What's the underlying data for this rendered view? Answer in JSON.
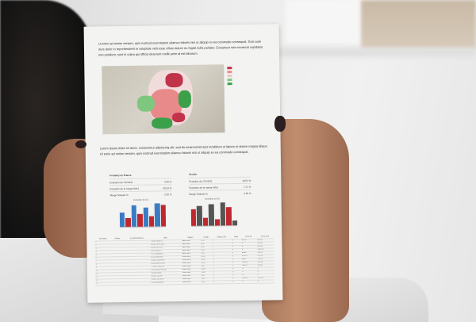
{
  "document": {
    "para1": "Ut enim ad minim veniam, quis nostrud exercitation ullamco laboris nisi ut aliquip ex ea commodo consequat. Duis aute irure dolor in reprehenderit in voluptate velit esse cillum dolore eu fugiat nulla pariatur. Excepteur sint occaecat cupidatat non proident, sunt in culpa qui officia deserunt mollit anim id est laborum.",
    "para2": "Lorem ipsum dolor sit amet, consectetur adipiscing elit, sed do eiusmod tempor incididunt ut labore et dolore magna aliqua. Ut enim ad minim veniam, quis nostrud exercitation ullamco laboris nisi ut aliquip ex ea commodo consequat.",
    "map_legend": {
      "colors": [
        "#c0334a",
        "#e88a8a",
        "#f2c2c2",
        "#7fc77f",
        "#3aa04a"
      ]
    },
    "kpi_left": {
      "title": "Fonteley en France",
      "rows": [
        [
          "Evolution du CA N/N1",
          "-4.48 %"
        ],
        [
          "Evolution de la marge N/N1",
          "-40.54 %"
        ],
        [
          "Marge Globale %",
          "2.02 %"
        ]
      ]
    },
    "kpi_right": {
      "title": "Clodeo",
      "rows": [
        [
          "Evolution du CA N/N1",
          "18.54 %"
        ],
        [
          "Evolution de la marge N/N1",
          "7.17 %"
        ],
        [
          "Marge Globale %",
          "2.63 %"
        ]
      ]
    },
    "charts": [
      {
        "title": "Evolution du CA",
        "values": [
          20,
          12,
          30,
          18,
          26,
          14,
          32,
          30
        ],
        "colors": [
          "#3a7cc4",
          "#c0282e"
        ]
      },
      {
        "title": "Evolution du CA",
        "values": [
          22,
          26,
          10,
          28,
          8,
          30,
          24,
          6
        ],
        "colors": [
          "#c0282e",
          "#555555"
        ]
      }
    ],
    "data_table": {
      "headers": [
        "ID Clients",
        "Clients",
        "Id_cientsAdresse",
        "Ville",
        "Region",
        "Année",
        "Clients_Prix",
        "Nbre",
        "CA N-Fin",
        "CA N-AUV"
      ],
      "rows": [
        [
          "1",
          "",
          "",
          "75008 PANTIN",
          "Tresor dle 1",
          "2017",
          "1",
          "0",
          "432.27",
          "206.40"
        ],
        [
          "2",
          "",
          "",
          "92000 DEFENSE",
          "Tresor dle 1",
          "2017",
          "1",
          "0",
          "0",
          "378.59"
        ],
        [
          "3",
          "",
          "",
          "94290 CLICHY",
          "Tresor dle 1",
          "2017",
          "1",
          "0",
          "0",
          "256.09"
        ],
        [
          "4",
          "",
          "",
          "92000 BOISY",
          "Tresor dle 1",
          "2017",
          "1",
          "0",
          "0",
          "1269.35"
        ],
        [
          "5",
          "",
          "",
          "92700 BRANDY",
          "Tresor dle 1",
          "2017",
          "1",
          "0",
          "96.89",
          "239.03"
        ],
        [
          "6",
          "",
          "",
          "92140 BERSAY",
          "Tresor dle 1",
          "2016",
          "1",
          "0",
          "797.07",
          "312.40"
        ],
        [
          "7",
          "",
          "",
          "92300 COURNEY",
          "Tresor dle 1",
          "2016",
          "1",
          "0",
          "465.7",
          "210.00"
        ],
        [
          "8",
          "",
          "",
          "92000 MONCRAL",
          "Tresor dle 1",
          "2016",
          "1",
          "0",
          "228.90",
          "242.65"
        ],
        [
          "9",
          "",
          "",
          "77000 CHELLES",
          "Tresor dle 1",
          "2017",
          "1",
          "0",
          "246.37",
          "228.07"
        ],
        [
          "10",
          "",
          "",
          "92000 MONTREUIL",
          "Tresor dle 1",
          "2009",
          "1",
          "0",
          "0",
          "0"
        ],
        [
          "11",
          "",
          "",
          "92500 RUEIL",
          "Tresor dle 1",
          "2009",
          "1",
          "0",
          "0",
          "0"
        ],
        [
          "12",
          "",
          "",
          "92000 CLICHY",
          "Tresor dle 1",
          "2013",
          "1",
          "0",
          "0",
          "0"
        ],
        [
          "13",
          "",
          "",
          "92000 VILLERS",
          "Tresor dle 1",
          "2013",
          "1",
          "0",
          "220.61",
          "101.80"
        ],
        [
          "14",
          "",
          "",
          "92000 Nanterre",
          "Tresor dle 1",
          "2013",
          "1",
          "0",
          "0",
          "0"
        ]
      ]
    }
  }
}
